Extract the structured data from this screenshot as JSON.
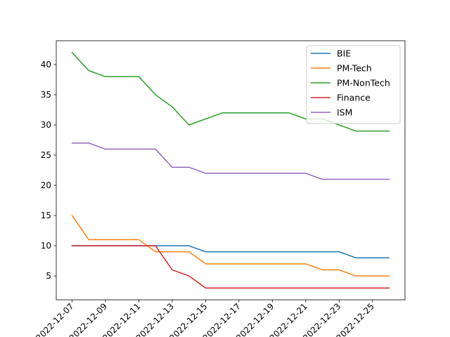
{
  "chart_data": {
    "type": "line",
    "title": "",
    "xlabel": "",
    "ylabel": "",
    "x": [
      "2022-12-07",
      "2022-12-08",
      "2022-12-09",
      "2022-12-10",
      "2022-12-11",
      "2022-12-12",
      "2022-12-13",
      "2022-12-14",
      "2022-12-15",
      "2022-12-16",
      "2022-12-17",
      "2022-12-18",
      "2022-12-19",
      "2022-12-20",
      "2022-12-21",
      "2022-12-22",
      "2022-12-23",
      "2022-12-24",
      "2022-12-25",
      "2022-12-26"
    ],
    "xtick_labels": [
      "2022-12-07",
      "2022-12-09",
      "2022-12-11",
      "2022-12-13",
      "2022-12-15",
      "2022-12-17",
      "2022-12-19",
      "2022-12-21",
      "2022-12-23",
      "2022-12-25"
    ],
    "yticks": [
      5,
      10,
      15,
      20,
      25,
      30,
      35,
      40
    ],
    "ylim": [
      1.05,
      43.95
    ],
    "legend_position": "top-right",
    "series": [
      {
        "name": "BIE",
        "color": "#1f77b4",
        "values": [
          10,
          10,
          10,
          10,
          10,
          10,
          10,
          10,
          9,
          9,
          9,
          9,
          9,
          9,
          9,
          9,
          9,
          8,
          8,
          8
        ]
      },
      {
        "name": "PM-Tech",
        "color": "#ff7f0e",
        "values": [
          15,
          11,
          11,
          11,
          11,
          9,
          9,
          9,
          7,
          7,
          7,
          7,
          7,
          7,
          7,
          6,
          6,
          5,
          5,
          5
        ]
      },
      {
        "name": "PM-NonTech",
        "color": "#2ca02c",
        "values": [
          42,
          39,
          38,
          38,
          38,
          35,
          33,
          30,
          31,
          32,
          32,
          32,
          32,
          32,
          31,
          31,
          30,
          29,
          29,
          29
        ]
      },
      {
        "name": "Finance",
        "color": "#d62728",
        "values": [
          10,
          10,
          10,
          10,
          10,
          10,
          6,
          5,
          3,
          3,
          3,
          3,
          3,
          3,
          3,
          3,
          3,
          3,
          3,
          3
        ]
      },
      {
        "name": "ISM",
        "color": "#9467bd",
        "values": [
          27,
          27,
          26,
          26,
          26,
          26,
          23,
          23,
          22,
          22,
          22,
          22,
          22,
          22,
          22,
          21,
          21,
          21,
          21,
          21
        ]
      }
    ]
  }
}
